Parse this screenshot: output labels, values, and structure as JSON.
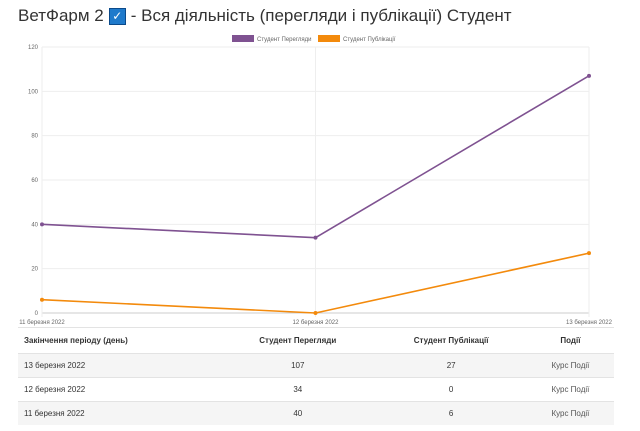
{
  "title": {
    "prefix": "ВетФарм 2",
    "suffix": "- Вся діяльність (перегляди і публікації) Студент"
  },
  "chart_data": {
    "type": "line",
    "x": [
      "11 березня 2022",
      "12 березня 2022",
      "13 березня 2022"
    ],
    "series": [
      {
        "name": "Студент Перегляди",
        "values": [
          40,
          34,
          107
        ],
        "color": "#7f5291"
      },
      {
        "name": "Студент Публікації",
        "values": [
          6,
          0,
          27
        ],
        "color": "#f38a0c"
      }
    ],
    "ylim": [
      0,
      120
    ],
    "yticks": [
      0,
      20,
      40,
      60,
      80,
      100,
      120
    ],
    "legend": "top",
    "grid": true
  },
  "table": {
    "headers": [
      "Закінчення періоду (день)",
      "Студент Перегляди",
      "Студент Публікації",
      "Події"
    ],
    "rows": [
      [
        "13 березня 2022",
        "107",
        "27",
        "Курс Події"
      ],
      [
        "12 березня 2022",
        "34",
        "0",
        "Курс Події"
      ],
      [
        "11 березня 2022",
        "40",
        "6",
        "Курс Події"
      ]
    ]
  }
}
